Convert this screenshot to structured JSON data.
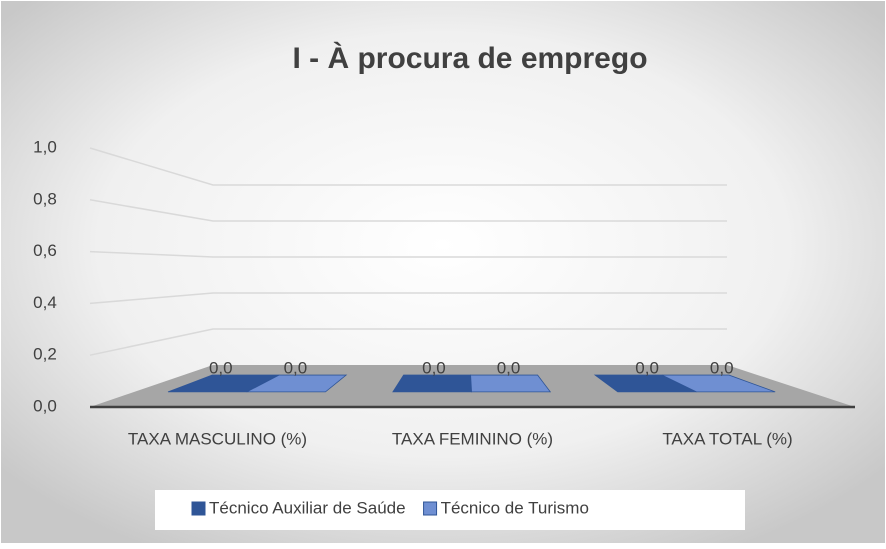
{
  "chart_data": {
    "type": "bar3d",
    "title": "I - À procura de emprego",
    "categories": [
      "TAXA MASCULINO (%)",
      "TAXA FEMININO (%)",
      "TAXA TOTAL (%)"
    ],
    "series": [
      {
        "name": "Técnico Auxiliar de Saúde",
        "color": "#2f5597",
        "values": [
          0,
          0,
          0
        ],
        "value_labels": [
          "0,0",
          "0,0",
          "0,0"
        ]
      },
      {
        "name": "Técnico de Turismo",
        "color": "#6f8fd2",
        "values": [
          0,
          0,
          0
        ],
        "value_labels": [
          "0,0",
          "0,0",
          "0,0"
        ]
      }
    ],
    "ylim": [
      0,
      1
    ],
    "yticks": [
      {
        "value": 0,
        "label": "0,0"
      },
      {
        "value": 0.2,
        "label": "0,2"
      },
      {
        "value": 0.4,
        "label": "0,4"
      },
      {
        "value": 0.6,
        "label": "0,6"
      },
      {
        "value": 0.8,
        "label": "0,8"
      },
      {
        "value": 1,
        "label": "1,0"
      }
    ],
    "grid": true,
    "legend": "bottom"
  }
}
